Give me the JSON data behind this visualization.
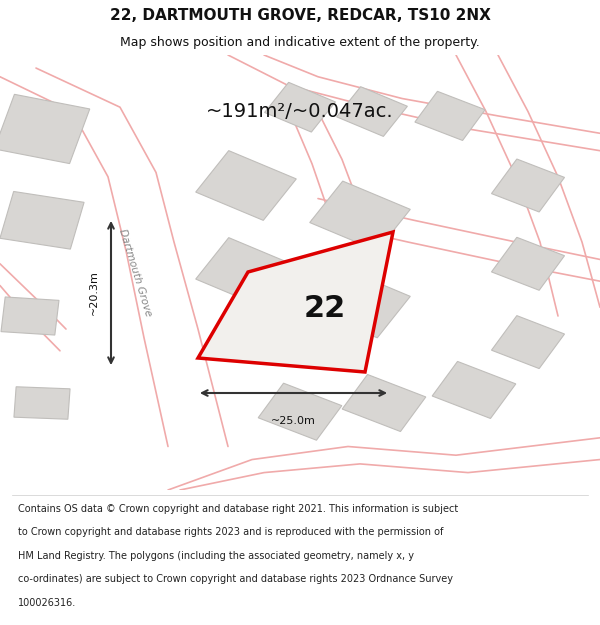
{
  "title": "22, DARTMOUTH GROVE, REDCAR, TS10 2NX",
  "subtitle": "Map shows position and indicative extent of the property.",
  "area_label": "~191m²/~0.047ac.",
  "number_label": "22",
  "dim_width": "~25.0m",
  "dim_height": "~20.3m",
  "road_label": "Dartmouth Grove",
  "footer_lines": [
    "Contains OS data © Crown copyright and database right 2021. This information is subject",
    "to Crown copyright and database rights 2023 and is reproduced with the permission of",
    "HM Land Registry. The polygons (including the associated geometry, namely x, y",
    "co-ordinates) are subject to Crown copyright and database rights 2023 Ordnance Survey",
    "100026316."
  ],
  "map_bg": "#f5f3f1",
  "road_color": "#f0aaaa",
  "building_fill": "#d8d6d3",
  "building_edge": "#c0bebb",
  "plot_fill": "#f2f0ed",
  "plot_edge": "#dd0000",
  "arrow_color": "#333333",
  "text_dark": "#111111",
  "text_grey": "#888888",
  "title_fontsize": 11,
  "subtitle_fontsize": 9,
  "footer_fontsize": 7.0,
  "area_fontsize": 14,
  "number_fontsize": 22,
  "road_label_fontsize": 7.5,
  "dim_fontsize": 8
}
